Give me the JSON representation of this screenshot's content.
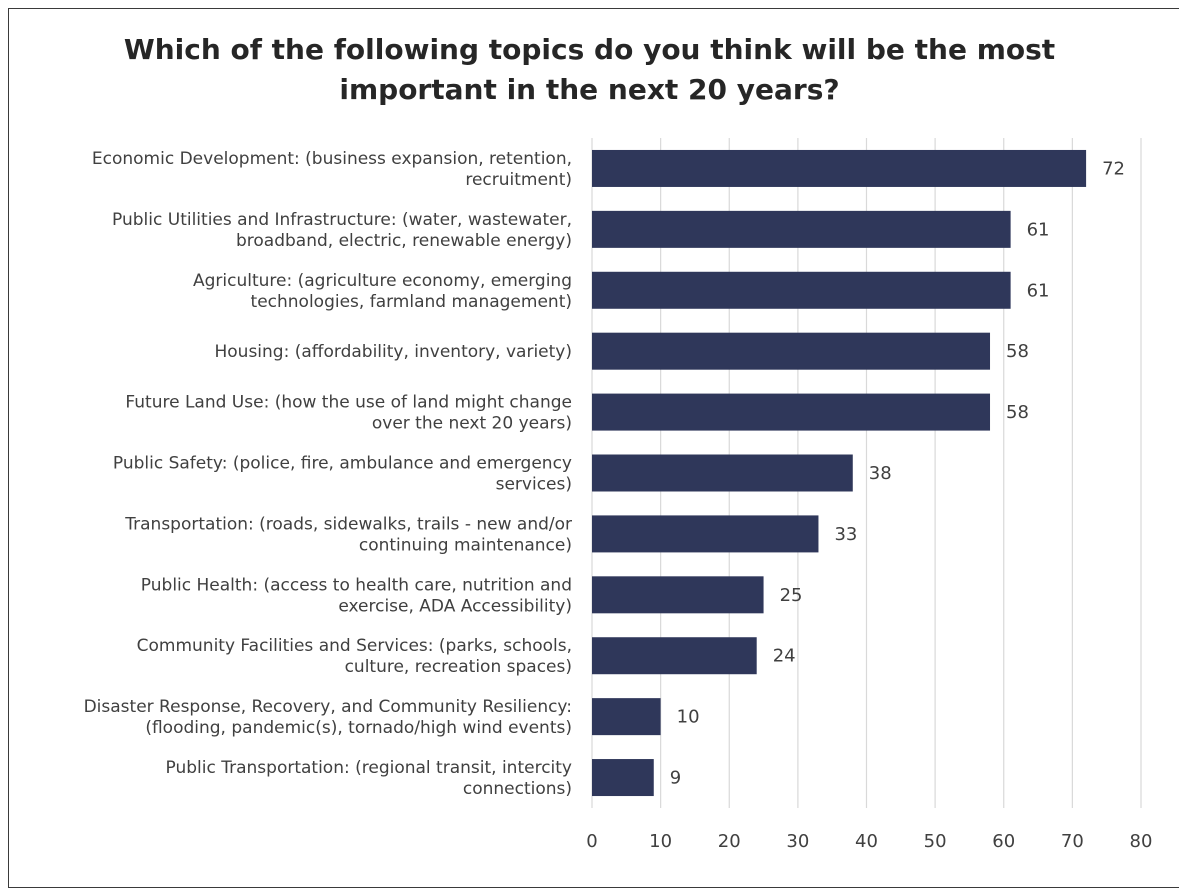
{
  "chart_data": {
    "type": "bar",
    "orientation": "horizontal",
    "title_lines": [
      "Which of the following topics do you think will be the most",
      "important in the next 20 years?"
    ],
    "categories": [
      [
        "Economic Development: (business expansion, retention,",
        "recruitment)"
      ],
      [
        "Public Utilities and Infrastructure: (water, wastewater,",
        "broadband, electric, renewable energy)"
      ],
      [
        "Agriculture: (agriculture economy, emerging",
        "technologies, farmland management)"
      ],
      [
        "Housing: (affordability, inventory, variety)"
      ],
      [
        "Future Land Use: (how the use of land might change",
        "over the next 20 years)"
      ],
      [
        "Public Safety: (police, fire, ambulance and emergency",
        "services)"
      ],
      [
        "Transportation: (roads, sidewalks, trails - new and/or",
        "continuing maintenance)"
      ],
      [
        "Public Health: (access to health care, nutrition and",
        "exercise, ADA Accessibility)"
      ],
      [
        "Community Facilities and Services: (parks, schools,",
        "culture, recreation spaces)"
      ],
      [
        "Disaster Response, Recovery, and Community Resiliency:",
        "(flooding, pandemic(s), tornado/high wind events)"
      ],
      [
        "Public Transportation: (regional transit, intercity",
        "connections)"
      ]
    ],
    "values": [
      72,
      61,
      61,
      58,
      58,
      38,
      33,
      25,
      24,
      10,
      9
    ],
    "xlim": [
      0,
      80
    ],
    "xticks": [
      0,
      10,
      20,
      30,
      40,
      50,
      60,
      70,
      80
    ],
    "grid": true,
    "bar_color": "#2f375a",
    "grid_color": "#d9d9d9"
  }
}
